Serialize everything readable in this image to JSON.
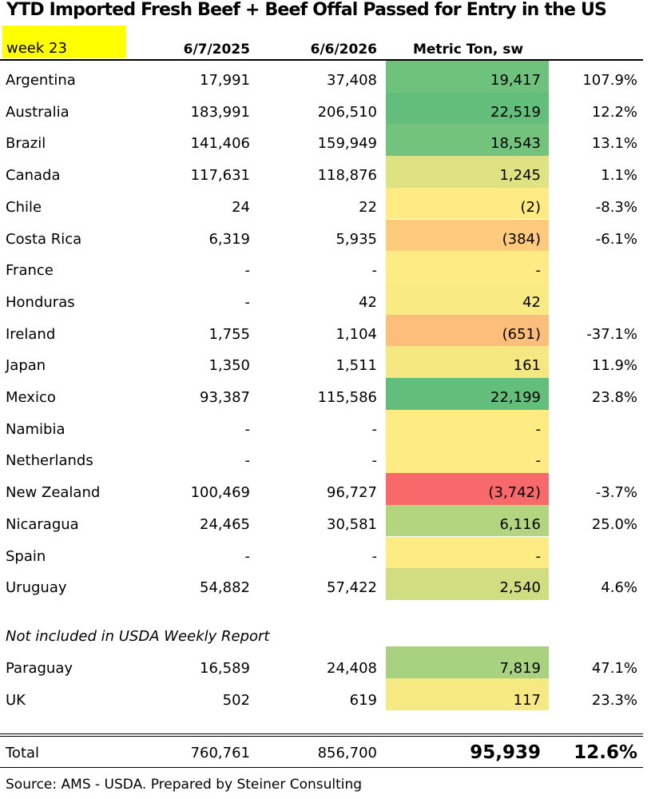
{
  "title": "YTD Imported Fresh Beef + Beef Offal Passed for Entry in the US",
  "week_label": "week 23",
  "headers": {
    "col1": "6/7/2025",
    "col2": "6/6/2026",
    "col3": "Metric Ton, sw",
    "col4": ""
  },
  "colors": {
    "week_highlight": "#ffff00",
    "heat_high": "#63be7b",
    "heat_mid": "#ffeb84",
    "heat_low": "#f8696b"
  },
  "rows": [
    {
      "country": "Argentina",
      "y2025": "17,991",
      "y2026": "37,408",
      "change": "19,417",
      "pct": "107.9%",
      "change_value": 19417
    },
    {
      "country": "Australia",
      "y2025": "183,991",
      "y2026": "206,510",
      "change": "22,519",
      "pct": "12.2%",
      "change_value": 22519
    },
    {
      "country": "Brazil",
      "y2025": "141,406",
      "y2026": "159,949",
      "change": "18,543",
      "pct": "13.1%",
      "change_value": 18543
    },
    {
      "country": "Canada",
      "y2025": "117,631",
      "y2026": "118,876",
      "change": "1,245",
      "pct": "1.1%",
      "change_value": 1245
    },
    {
      "country": "Chile",
      "y2025": "24",
      "y2026": "22",
      "change": "(2)",
      "pct": "-8.3%",
      "change_value": -2
    },
    {
      "country": "Costa Rica",
      "y2025": "6,319",
      "y2026": "5,935",
      "change": "(384)",
      "pct": "-6.1%",
      "change_value": -384
    },
    {
      "country": "France",
      "y2025": "-",
      "y2026": "-",
      "change": "-",
      "pct": "",
      "change_value": 0
    },
    {
      "country": "Honduras",
      "y2025": "-",
      "y2026": "42",
      "change": "42",
      "pct": "",
      "change_value": 42
    },
    {
      "country": "Ireland",
      "y2025": "1,755",
      "y2026": "1,104",
      "change": "(651)",
      "pct": "-37.1%",
      "change_value": -651
    },
    {
      "country": "Japan",
      "y2025": "1,350",
      "y2026": "1,511",
      "change": "161",
      "pct": "11.9%",
      "change_value": 161
    },
    {
      "country": "Mexico",
      "y2025": "93,387",
      "y2026": "115,586",
      "change": "22,199",
      "pct": "23.8%",
      "change_value": 22199
    },
    {
      "country": "Namibia",
      "y2025": "-",
      "y2026": "-",
      "change": "-",
      "pct": "",
      "change_value": 0
    },
    {
      "country": "Netherlands",
      "y2025": "-",
      "y2026": "-",
      "change": "-",
      "pct": "",
      "change_value": 0
    },
    {
      "country": "New Zealand",
      "y2025": "100,469",
      "y2026": "96,727",
      "change": "(3,742)",
      "pct": "-3.7%",
      "change_value": -3742
    },
    {
      "country": "Nicaragua",
      "y2025": "24,465",
      "y2026": "30,581",
      "change": "6,116",
      "pct": "25.0%",
      "change_value": 6116
    },
    {
      "country": "Spain",
      "y2025": "-",
      "y2026": "-",
      "change": "-",
      "pct": "",
      "change_value": 0
    },
    {
      "country": "Uruguay",
      "y2025": "54,882",
      "y2026": "57,422",
      "change": "2,540",
      "pct": "4.6%",
      "change_value": 2540
    }
  ],
  "note": "Not included in USDA Weekly Report",
  "extra_rows": [
    {
      "country": "Paraguay",
      "y2025": "16,589",
      "y2026": "24,408",
      "change": "7,819",
      "pct": "47.1%",
      "change_value": 7819
    },
    {
      "country": "UK",
      "y2025": "502",
      "y2026": "619",
      "change": "117",
      "pct": "23.3%",
      "change_value": 117
    }
  ],
  "total": {
    "label": "Total",
    "y2025": "760,761",
    "y2026": "856,700",
    "change": "95,939",
    "pct": "12.6%"
  },
  "source": "Source: AMS - USDA.  Prepared by Steiner Consulting",
  "chart_data": {
    "type": "table",
    "title": "YTD Imported Fresh Beef + Beef Offal Passed for Entry in the US",
    "columns": [
      "",
      "6/7/2025",
      "6/6/2026",
      "Metric Ton, sw",
      ""
    ],
    "rows": [
      [
        "Argentina",
        17991,
        37408,
        19417,
        107.9
      ],
      [
        "Australia",
        183991,
        206510,
        22519,
        12.2
      ],
      [
        "Brazil",
        141406,
        159949,
        18543,
        13.1
      ],
      [
        "Canada",
        117631,
        118876,
        1245,
        1.1
      ],
      [
        "Chile",
        24,
        22,
        -2,
        -8.3
      ],
      [
        "Costa Rica",
        6319,
        5935,
        -384,
        -6.1
      ],
      [
        "France",
        null,
        null,
        null,
        null
      ],
      [
        "Honduras",
        null,
        42,
        42,
        null
      ],
      [
        "Ireland",
        1755,
        1104,
        -651,
        -37.1
      ],
      [
        "Japan",
        1350,
        1511,
        161,
        11.9
      ],
      [
        "Mexico",
        93387,
        115586,
        22199,
        23.8
      ],
      [
        "Namibia",
        null,
        null,
        null,
        null
      ],
      [
        "Netherlands",
        null,
        null,
        null,
        null
      ],
      [
        "New Zealand",
        100469,
        96727,
        -3742,
        -3.7
      ],
      [
        "Nicaragua",
        24465,
        30581,
        6116,
        25.0
      ],
      [
        "Spain",
        null,
        null,
        null,
        null
      ],
      [
        "Uruguay",
        54882,
        57422,
        2540,
        4.6
      ],
      [
        "Paraguay",
        16589,
        24408,
        7819,
        47.1
      ],
      [
        "UK",
        502,
        619,
        117,
        23.3
      ],
      [
        "Total",
        760761,
        856700,
        95939,
        12.6
      ]
    ]
  }
}
